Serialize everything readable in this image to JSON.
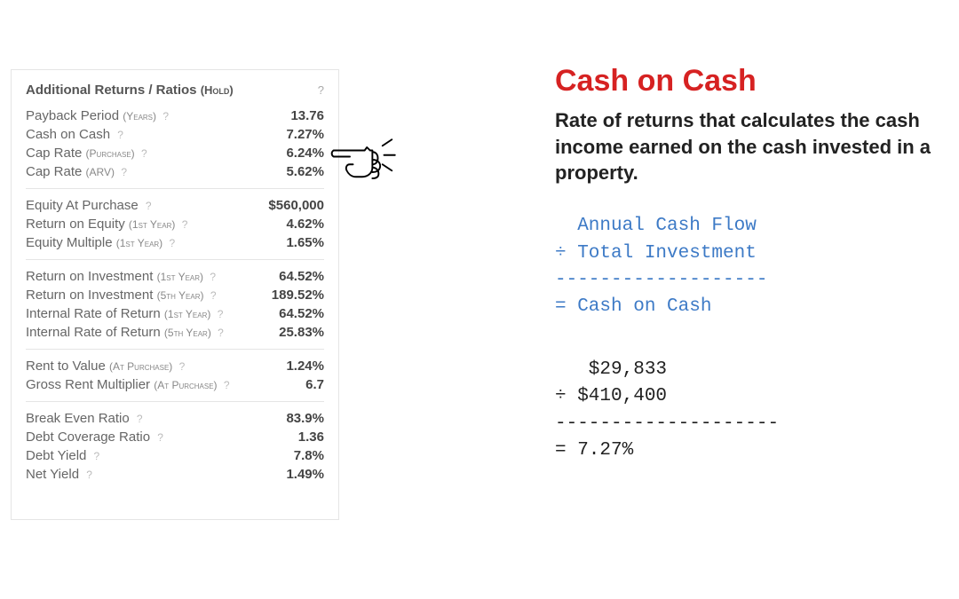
{
  "panel": {
    "header_title": "Additional Returns / Ratios",
    "header_sub": "(Hold)",
    "header_help": "?",
    "sections": [
      [
        {
          "label": "Payback Period",
          "sub": "(Years)",
          "value": "13.76"
        },
        {
          "label": "Cash on Cash",
          "sub": "",
          "value": "7.27%"
        },
        {
          "label": "Cap Rate",
          "sub": "(Purchase)",
          "value": "6.24%"
        },
        {
          "label": "Cap Rate",
          "sub": "(ARV)",
          "value": "5.62%"
        }
      ],
      [
        {
          "label": "Equity At Purchase",
          "sub": "",
          "value": "$560,000"
        },
        {
          "label": "Return on Equity",
          "sub": "(1st Year)",
          "value": "4.62%"
        },
        {
          "label": "Equity Multiple",
          "sub": "(1st Year)",
          "value": "1.65%"
        }
      ],
      [
        {
          "label": "Return on Investment",
          "sub": "(1st Year)",
          "value": "64.52%"
        },
        {
          "label": "Return on Investment",
          "sub": "(5th Year)",
          "value": "189.52%"
        },
        {
          "label": "Internal Rate of Return",
          "sub": "(1st Year)",
          "value": "64.52%"
        },
        {
          "label": "Internal Rate of Return",
          "sub": "(5th Year)",
          "value": "25.83%"
        }
      ],
      [
        {
          "label": "Rent to Value",
          "sub": "(At Purchase)",
          "value": "1.24%"
        },
        {
          "label": "Gross Rent Multiplier",
          "sub": "(At Purchase)",
          "value": "6.7"
        }
      ],
      [
        {
          "label": "Break Even Ratio",
          "sub": "",
          "value": "83.9%"
        },
        {
          "label": "Debt Coverage Ratio",
          "sub": "",
          "value": "1.36"
        },
        {
          "label": "Debt Yield",
          "sub": "",
          "value": "7.8%"
        },
        {
          "label": "Net Yield",
          "sub": "",
          "value": "1.49%"
        }
      ]
    ]
  },
  "right": {
    "title": "Cash on Cash",
    "description": "Rate of returns that calculates the cash income earned on the cash invested in a property.",
    "formula_lines": [
      "  Annual Cash Flow",
      "÷ Total Investment",
      "-------------------",
      "= Cash on Cash"
    ],
    "calc_lines": [
      "   $29,833",
      "÷ $410,400",
      "--------------------",
      "= 7.27%"
    ]
  },
  "help_glyph": "?",
  "colors": {
    "accent_red": "#d62222",
    "formula_blue": "#3d7ac6",
    "border": "#e5e5e5",
    "text_gray": "#666",
    "value_gray": "#444"
  }
}
